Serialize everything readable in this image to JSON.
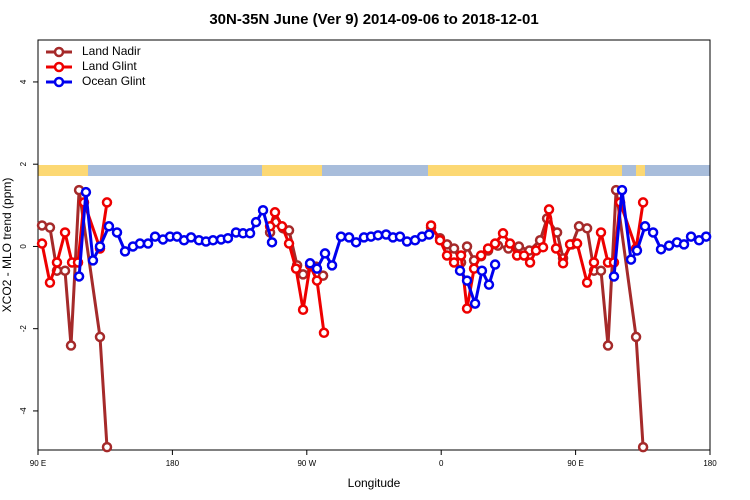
{
  "chart_data": {
    "type": "line",
    "title": "30N-35N June (Ver 9)   2014-09-06 to 2018-12-01",
    "x_label": "Longitude",
    "y_label": "XCO2 - MLO trend (ppm)",
    "xlim": [
      90,
      540
    ],
    "ylim": [
      -4.95,
      5.02
    ],
    "xticks": [
      {
        "value": 90,
        "label": "90 E"
      },
      180,
      {
        "value": 270,
        "label": "90 W"
      },
      {
        "value": 360,
        "label": "0"
      },
      {
        "value": 450,
        "label": "90 E"
      },
      {
        "value": 540,
        "label": "180"
      }
    ],
    "yticks": [
      -4,
      -2,
      0,
      2,
      4
    ],
    "legend": "top-left",
    "series": [
      {
        "name": "Land Nadir",
        "color": "#a52a2a",
        "x": [
          92.7,
          98.0,
          102.7,
          108.1,
          112.1,
          117.5,
          131.5,
          136.2,
          null,
          245.4,
          249.4,
          254.1,
          258.1,
          263.5,
          267.5,
          276.2,
          280.9,
          null,
          353.2,
          359.2,
          363.9,
          368.6,
          373.3,
          377.3,
          382.0,
          386.7,
          391.4,
          398.0,
          405.0,
          412.0,
          419.0,
          426.2,
          430.9,
          437.6,
          441.6,
          447.6,
          452.3,
          457.7,
          462.3,
          467.0,
          471.7,
          477.1,
          490.5,
          495.2
        ],
        "values": [
          0.51,
          0.46,
          -0.59,
          -0.59,
          -2.41,
          1.37,
          -2.2,
          -4.88,
          null,
          0.34,
          0.59,
          0.44,
          0.39,
          -0.46,
          -0.68,
          -0.49,
          -0.71,
          null,
          0.46,
          0.2,
          0.05,
          -0.05,
          -0.39,
          0,
          -0.34,
          -0.24,
          -0.1,
          0.02,
          -0.05,
          0,
          -0.1,
          0.15,
          0.68,
          0.34,
          -0.29,
          0.05,
          0.49,
          0.44,
          -0.59,
          -0.59,
          -2.41,
          1.37,
          -2.2,
          -4.88
        ]
      },
      {
        "name": "Land Glint",
        "color": "#ee0000",
        "x": [
          92.7,
          98.0,
          102.7,
          108.1,
          112.8,
          116.8,
          120.8,
          131.5,
          136.2,
          null,
          245.4,
          248.7,
          253.4,
          258.1,
          262.8,
          267.5,
          272.2,
          276.8,
          281.5,
          null,
          353.2,
          359.2,
          363.9,
          368.6,
          373.3,
          377.3,
          382.0,
          386.7,
          391.4,
          396.1,
          401.4,
          406.1,
          410.8,
          415.5,
          419.5,
          423.5,
          428.2,
          432.2,
          436.9,
          441.6,
          446.3,
          451.0,
          457.7,
          462.3,
          467.0,
          471.7,
          475.7,
          479.8,
          490.5,
          495.2
        ],
        "values": [
          0.07,
          -0.88,
          -0.39,
          0.34,
          -0.39,
          -0.39,
          1.07,
          -0.05,
          1.07,
          null,
          0.49,
          0.83,
          0.49,
          0.07,
          -0.54,
          -1.54,
          -0.46,
          -0.83,
          -2.1,
          null,
          0.51,
          0.15,
          -0.22,
          -0.39,
          -0.22,
          -1.51,
          -0.54,
          -0.22,
          -0.05,
          0.07,
          0.32,
          0.07,
          -0.22,
          -0.22,
          -0.39,
          -0.1,
          -0.02,
          0.9,
          -0.05,
          -0.41,
          0.05,
          0.07,
          -0.88,
          -0.39,
          0.34,
          -0.39,
          -0.39,
          1.07,
          -0.05,
          1.07
        ]
      },
      {
        "name": "Ocean Glint",
        "color": "#0000ee",
        "x": [
          117.5,
          122.1,
          126.8,
          131.5,
          137.5,
          142.9,
          148.3,
          153.6,
          158.3,
          163.7,
          168.4,
          173.7,
          178.4,
          183.1,
          187.8,
          192.5,
          197.8,
          202.5,
          207.2,
          212.6,
          217.2,
          222.6,
          227.3,
          232.0,
          236.0,
          240.7,
          246.7,
          null,
          272.2,
          276.8,
          282.2,
          286.9,
          292.9,
          298.3,
          303.0,
          308.3,
          313.0,
          317.7,
          323.1,
          327.7,
          332.4,
          337.1,
          342.5,
          347.2,
          351.9,
          null,
          372.6,
          377.3,
          382.7,
          387.3,
          392.0,
          396.1,
          null,
          475.7,
          481.1,
          487.1,
          491.1,
          496.5,
          501.9,
          507.2,
          512.6,
          517.9,
          522.6,
          527.3,
          532.7,
          537.4
        ],
        "values": [
          -0.73,
          1.32,
          -0.34,
          0,
          0.49,
          0.34,
          -0.12,
          0,
          0.07,
          0.07,
          0.24,
          0.17,
          0.24,
          0.24,
          0.15,
          0.22,
          0.15,
          0.12,
          0.15,
          0.17,
          0.2,
          0.34,
          0.32,
          0.32,
          0.59,
          0.88,
          0.1,
          null,
          -0.41,
          -0.54,
          -0.17,
          -0.46,
          0.24,
          0.22,
          0.1,
          0.22,
          0.24,
          0.27,
          0.29,
          0.22,
          0.24,
          0.12,
          0.15,
          0.24,
          0.29,
          null,
          -0.59,
          -0.83,
          -1.39,
          -0.59,
          -0.93,
          -0.44,
          null,
          -0.73,
          1.37,
          -0.32,
          -0.1,
          0.49,
          0.34,
          -0.07,
          0.02,
          0.1,
          0.05,
          0.24,
          0.15,
          0.24
        ]
      }
    ]
  }
}
